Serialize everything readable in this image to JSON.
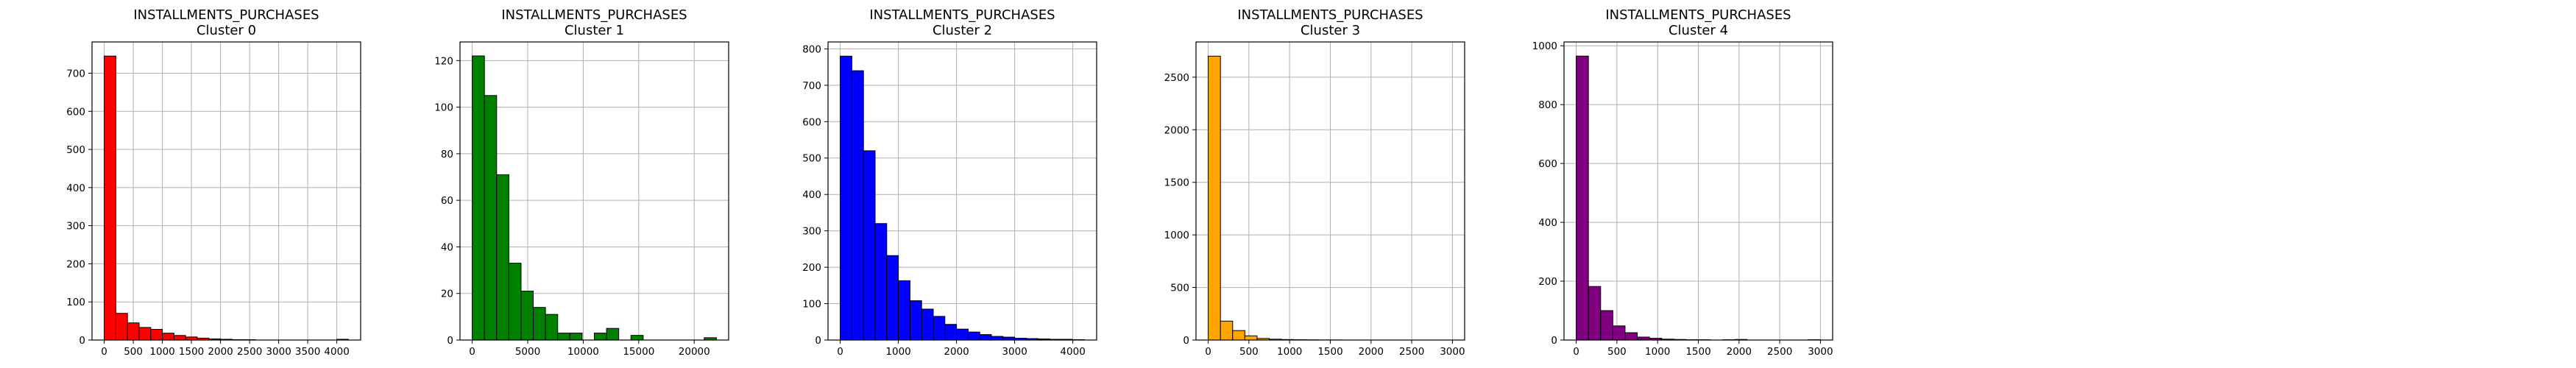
{
  "chart_data": [
    {
      "type": "bar",
      "title": "INSTALLMENTS_PURCHASES",
      "subtitle": "Cluster 0",
      "color": "#ff0000",
      "bin_edges": [
        0,
        200,
        400,
        600,
        800,
        1000,
        1200,
        1400,
        1600,
        1800,
        2000,
        2200,
        2400,
        2600,
        2800,
        3000,
        3200,
        3400,
        3600,
        3800,
        4000,
        4200
      ],
      "values": [
        745,
        70,
        45,
        33,
        28,
        18,
        12,
        8,
        5,
        3,
        2,
        1,
        1,
        0,
        0,
        0,
        0,
        0,
        0,
        0,
        2
      ],
      "xlim": [
        -210,
        4410
      ],
      "ylim": [
        0,
        782
      ],
      "xticks": [
        0,
        500,
        1000,
        1500,
        2000,
        2500,
        3000,
        3500,
        4000
      ],
      "xtick_labels": [
        "0",
        "500",
        "1000",
        "1500",
        "2000",
        "2500",
        "3000",
        "3500",
        "4000"
      ],
      "yticks": [
        0,
        100,
        200,
        300,
        400,
        500,
        600,
        700
      ],
      "ytick_labels": [
        "0",
        "100",
        "200",
        "300",
        "400",
        "500",
        "600",
        "700"
      ],
      "grid": true
    },
    {
      "type": "bar",
      "title": "INSTALLMENTS_PURCHASES",
      "subtitle": "Cluster 1",
      "color": "#008000",
      "bin_edges": [
        0,
        1100,
        2200,
        3300,
        4400,
        5500,
        6600,
        7700,
        8800,
        9900,
        11000,
        12100,
        13200,
        14300,
        15400,
        16500,
        17600,
        18700,
        19800,
        20900,
        22000
      ],
      "values": [
        122,
        105,
        71,
        33,
        21,
        14,
        11,
        3,
        3,
        0,
        3,
        5,
        0,
        2,
        0,
        0,
        0,
        0,
        0,
        1
      ],
      "xlim": [
        -1100,
        23100
      ],
      "ylim": [
        0,
        128
      ],
      "xticks": [
        0,
        5000,
        10000,
        15000,
        20000
      ],
      "xtick_labels": [
        "0",
        "5000",
        "10000",
        "15000",
        "20000"
      ],
      "yticks": [
        0,
        20,
        40,
        60,
        80,
        100,
        120
      ],
      "ytick_labels": [
        "0",
        "20",
        "40",
        "60",
        "80",
        "100",
        "120"
      ],
      "grid": true
    },
    {
      "type": "bar",
      "title": "INSTALLMENTS_PURCHASES",
      "subtitle": "Cluster 2",
      "color": "#0000ff",
      "bin_edges": [
        0,
        200,
        400,
        600,
        800,
        1000,
        1200,
        1400,
        1600,
        1800,
        2000,
        2200,
        2400,
        2600,
        2800,
        3000,
        3200,
        3400,
        3600,
        3800,
        4000,
        4200
      ],
      "values": [
        780,
        740,
        520,
        320,
        232,
        163,
        108,
        85,
        65,
        43,
        30,
        22,
        15,
        10,
        8,
        5,
        4,
        3,
        2,
        2,
        1
      ],
      "xlim": [
        -210,
        4410
      ],
      "ylim": [
        0,
        819
      ],
      "xticks": [
        0,
        1000,
        2000,
        3000,
        4000
      ],
      "xtick_labels": [
        "0",
        "1000",
        "2000",
        "3000",
        "4000"
      ],
      "yticks": [
        0,
        100,
        200,
        300,
        400,
        500,
        600,
        700,
        800
      ],
      "ytick_labels": [
        "0",
        "100",
        "200",
        "300",
        "400",
        "500",
        "600",
        "700",
        "800"
      ],
      "grid": true
    },
    {
      "type": "bar",
      "title": "INSTALLMENTS_PURCHASES",
      "subtitle": "Cluster 3",
      "color": "#ffa500",
      "bin_edges": [
        0,
        150,
        300,
        450,
        600,
        750,
        900,
        1050,
        1200,
        1350,
        1500,
        1650,
        1800,
        1950,
        2100,
        2250,
        2400,
        2550,
        2700,
        2850,
        3000
      ],
      "values": [
        2700,
        180,
        90,
        40,
        15,
        8,
        5,
        3,
        2,
        1,
        1,
        0,
        0,
        0,
        0,
        0,
        0,
        0,
        0,
        0
      ],
      "xlim": [
        -150,
        3150
      ],
      "ylim": [
        0,
        2835
      ],
      "xticks": [
        0,
        500,
        1000,
        1500,
        2000,
        2500,
        3000
      ],
      "xtick_labels": [
        "0",
        "500",
        "1000",
        "1500",
        "2000",
        "2500",
        "3000"
      ],
      "yticks": [
        0,
        500,
        1000,
        1500,
        2000,
        2500
      ],
      "ytick_labels": [
        "0",
        "500",
        "1000",
        "1500",
        "2000",
        "2500"
      ],
      "grid": true
    },
    {
      "type": "bar",
      "title": "INSTALLMENTS_PURCHASES",
      "subtitle": "Cluster 4",
      "color": "#800080",
      "bin_edges": [
        0,
        150,
        300,
        450,
        600,
        750,
        900,
        1050,
        1200,
        1350,
        1500,
        1650,
        1800,
        1950,
        2100,
        2250,
        2400,
        2550,
        2700,
        2850,
        3000
      ],
      "values": [
        965,
        182,
        100,
        48,
        25,
        10,
        6,
        3,
        2,
        1,
        1,
        0,
        1,
        2,
        0,
        0,
        0,
        0,
        0,
        1
      ],
      "xlim": [
        -150,
        3150
      ],
      "ylim": [
        0,
        1013
      ],
      "xticks": [
        0,
        500,
        1000,
        1500,
        2000,
        2500,
        3000
      ],
      "xtick_labels": [
        "0",
        "500",
        "1000",
        "1500",
        "2000",
        "2500",
        "3000"
      ],
      "yticks": [
        0,
        200,
        400,
        600,
        800,
        1000
      ],
      "ytick_labels": [
        "0",
        "200",
        "400",
        "600",
        "800",
        "1000"
      ],
      "grid": true
    }
  ]
}
